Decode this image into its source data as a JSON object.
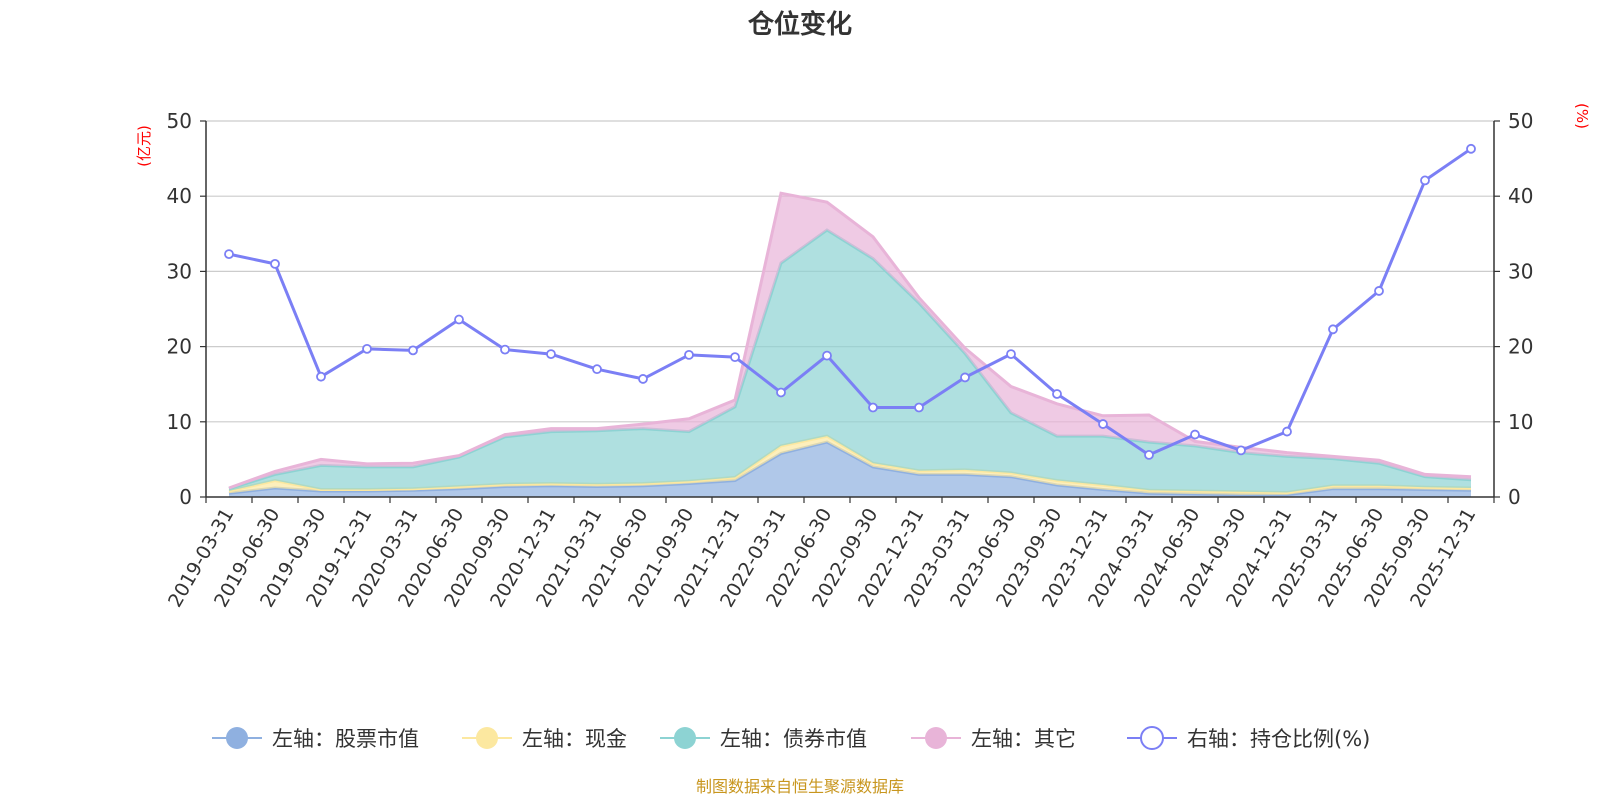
{
  "chart_data": {
    "type": "area",
    "title": "仓位变化",
    "left_unit": "(亿元)",
    "right_unit": "(%)",
    "ylim_left": [
      0,
      50
    ],
    "ylim_right": [
      0,
      50
    ],
    "yticks_left": [
      "0",
      "10",
      "20",
      "30",
      "40",
      "50"
    ],
    "yticks_right": [
      "0",
      "10",
      "20",
      "30",
      "40",
      "50"
    ],
    "categories": [
      "2019-03-31",
      "2019-06-30",
      "2019-09-30",
      "2019-12-31",
      "2020-03-31",
      "2020-06-30",
      "2020-09-30",
      "2020-12-31",
      "2021-03-31",
      "2021-06-30",
      "2021-09-30",
      "2021-12-31",
      "2022-03-31",
      "2022-06-30",
      "2022-09-30",
      "2022-12-31",
      "2023-03-31",
      "2023-06-30",
      "2023-09-30",
      "2023-12-31",
      "2024-03-31",
      "2024-06-30",
      "2024-09-30",
      "2024-12-31",
      "2025-03-31",
      "2025-06-30",
      "2025-09-30",
      "2025-12-31"
    ],
    "series": [
      {
        "name": "左轴：股票市值",
        "axis": "left",
        "color": "#8fb0e0",
        "values": [
          0.5,
          1.2,
          0.8,
          0.8,
          0.9,
          1.1,
          1.4,
          1.5,
          1.4,
          1.5,
          1.8,
          2.2,
          5.8,
          7.3,
          4.0,
          3.0,
          3.0,
          2.7,
          1.6,
          1.0,
          0.5,
          0.4,
          0.3,
          0.3,
          1.1,
          1.1,
          1.0,
          0.9
        ]
      },
      {
        "name": "左轴：现金",
        "axis": "left",
        "color": "#fce8a0",
        "values": [
          0.3,
          1.0,
          0.2,
          0.2,
          0.2,
          0.3,
          0.3,
          0.3,
          0.3,
          0.3,
          0.3,
          0.4,
          1.0,
          0.8,
          0.5,
          0.5,
          0.6,
          0.5,
          0.6,
          0.6,
          0.4,
          0.4,
          0.4,
          0.3,
          0.4,
          0.4,
          0.3,
          0.3
        ]
      },
      {
        "name": "左轴：债券市值",
        "axis": "left",
        "color": "#8dd3d3",
        "values": [
          0.3,
          0.8,
          3.2,
          3.0,
          2.9,
          3.9,
          6.3,
          6.9,
          7.1,
          7.3,
          6.6,
          9.4,
          24.3,
          27.4,
          27.2,
          22.3,
          15.5,
          8.0,
          5.9,
          6.5,
          6.4,
          6.0,
          5.2,
          4.8,
          3.6,
          3.0,
          1.4,
          1.1
        ]
      },
      {
        "name": "左轴：其它",
        "axis": "left",
        "color": "#e8b4d8",
        "values": [
          0.1,
          0.4,
          0.8,
          0.4,
          0.5,
          0.2,
          0.3,
          0.4,
          0.3,
          0.6,
          1.7,
          0.9,
          9.3,
          3.7,
          2.9,
          0.7,
          0.7,
          3.5,
          4.3,
          2.7,
          3.6,
          0.6,
          0.7,
          0.5,
          0.3,
          0.4,
          0.3,
          0.4
        ]
      },
      {
        "name": "右轴：持仓比例(%)",
        "axis": "right",
        "color": "#7b7ff5",
        "values": [
          32.3,
          31.0,
          16.0,
          19.7,
          19.5,
          23.6,
          19.6,
          19.0,
          17.0,
          15.7,
          18.9,
          18.6,
          13.9,
          18.8,
          11.9,
          11.9,
          15.9,
          19.0,
          13.7,
          9.7,
          5.6,
          8.3,
          6.2,
          8.7,
          22.3,
          27.4,
          42.1,
          46.3
        ]
      }
    ],
    "legend_position": "bottom",
    "source_note": "制图数据来自恒生聚源数据库"
  }
}
